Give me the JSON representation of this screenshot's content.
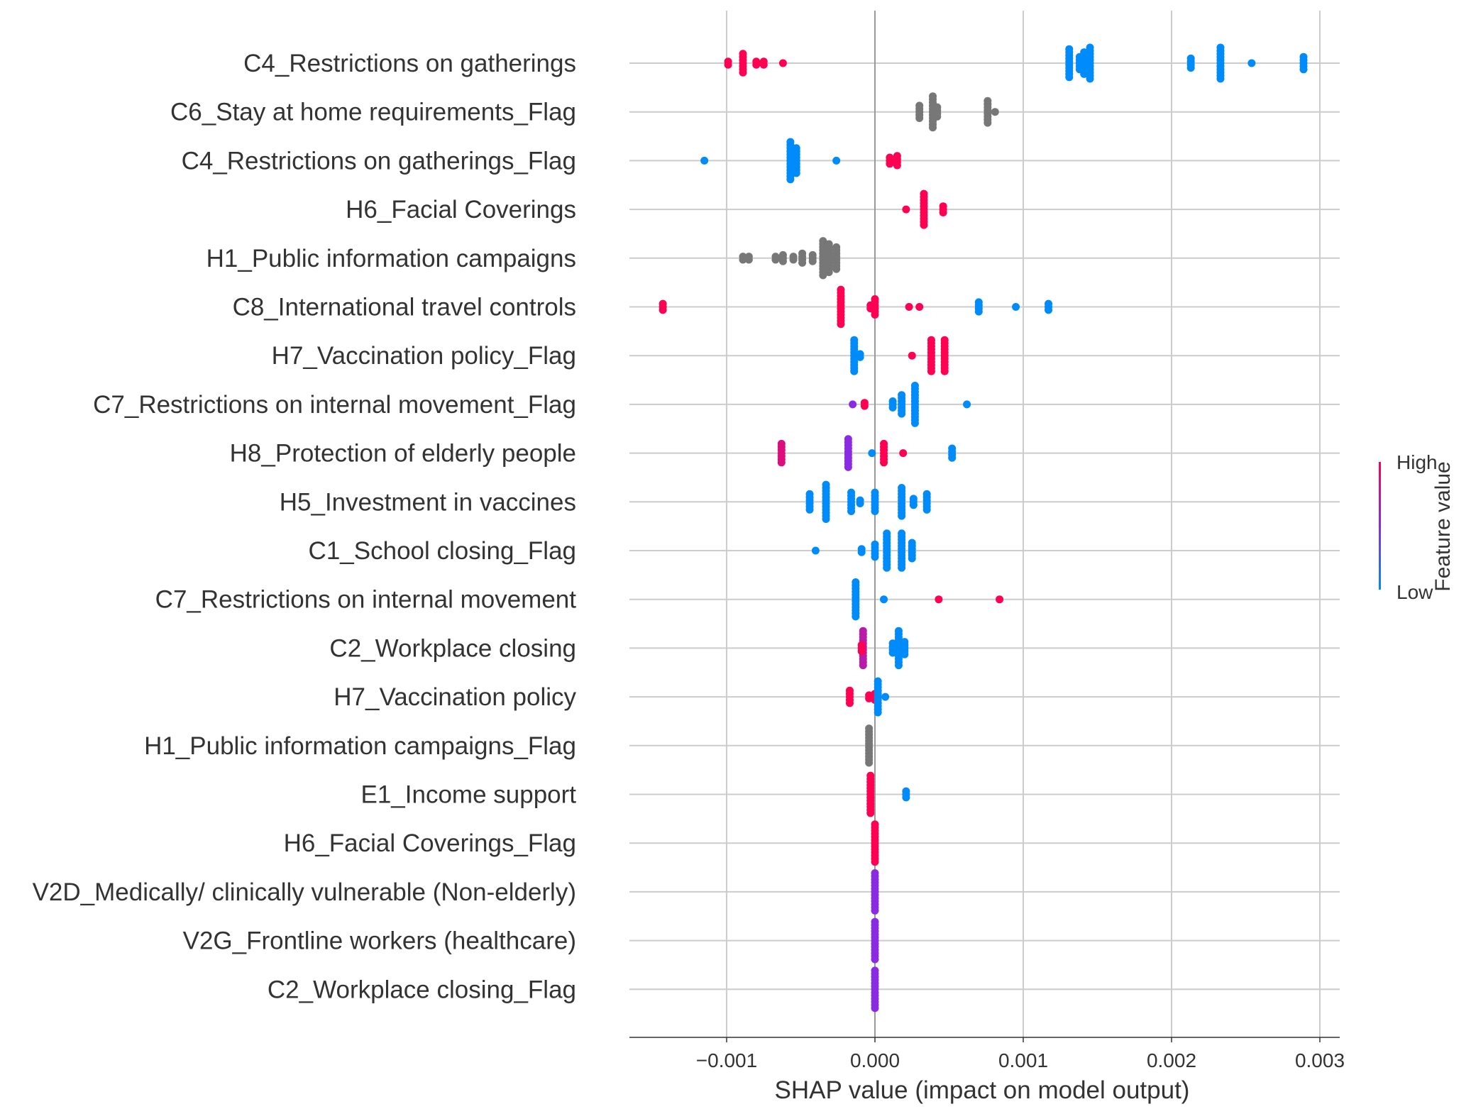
{
  "chart_data": {
    "type": "scatter",
    "subtype": "shap-beeswarm-summary",
    "xlabel": "SHAP value (impact on model output)",
    "x_ticks": [
      -0.001,
      0.0,
      0.001,
      0.002,
      0.003
    ],
    "x_tick_labels": [
      "−0.001",
      "0.000",
      "0.001",
      "0.002",
      "0.003"
    ],
    "xlim": [
      -0.00165,
      0.00312
    ],
    "grid": "vertical major gridlines and horizontal feature lines",
    "colorbar": {
      "title": "Feature value",
      "high_label": "High",
      "low_label": "Low",
      "high_color": "#ff0052",
      "low_color": "#008bfb",
      "missing_color": "#777777"
    },
    "features": [
      {
        "name": "C4_Restrictions on gatherings",
        "clusters": [
          {
            "x": -0.00099,
            "n": 2,
            "c": 1.0
          },
          {
            "x": -0.00089,
            "n": 7,
            "c": 1.0
          },
          {
            "x": -0.0008,
            "n": 2,
            "c": 1.0
          },
          {
            "x": -0.00075,
            "n": 2,
            "c": 1.0
          },
          {
            "x": -0.00062,
            "n": 1,
            "c": 1.0
          },
          {
            "x": 0.00131,
            "n": 10,
            "c": 0.0
          },
          {
            "x": 0.00138,
            "n": 5,
            "c": 0.0
          },
          {
            "x": 0.00141,
            "n": 8,
            "c": 0.0
          },
          {
            "x": 0.00145,
            "n": 11,
            "c": 0.0
          },
          {
            "x": 0.00213,
            "n": 4,
            "c": 0.0
          },
          {
            "x": 0.00233,
            "n": 11,
            "c": 0.0
          },
          {
            "x": 0.00254,
            "n": 1,
            "c": 0.0
          },
          {
            "x": 0.00289,
            "n": 5,
            "c": 0.0
          }
        ]
      },
      {
        "name": "C6_Stay at home requirements_Flag",
        "clusters": [
          {
            "x": 0.0003,
            "n": 5,
            "c": null
          },
          {
            "x": 0.00039,
            "n": 11,
            "c": null
          },
          {
            "x": 0.00042,
            "n": 4,
            "c": null
          },
          {
            "x": 0.00076,
            "n": 8,
            "c": null
          },
          {
            "x": 0.00081,
            "n": 1,
            "c": null
          }
        ]
      },
      {
        "name": "C4_Restrictions on gatherings_Flag",
        "clusters": [
          {
            "x": -0.00115,
            "n": 1,
            "c": 0.0
          },
          {
            "x": -0.00057,
            "n": 13,
            "c": 0.0
          },
          {
            "x": -0.00053,
            "n": 9,
            "c": 0.0
          },
          {
            "x": -0.00026,
            "n": 1,
            "c": 0.0
          },
          {
            "x": 0.0001,
            "n": 3,
            "c": 1.0
          },
          {
            "x": 0.00015,
            "n": 4,
            "c": 1.0
          }
        ]
      },
      {
        "name": "H6_Facial Coverings",
        "clusters": [
          {
            "x": 0.00021,
            "n": 1,
            "c": 1.0
          },
          {
            "x": 0.00033,
            "n": 11,
            "c": 1.0
          },
          {
            "x": 0.00046,
            "n": 3,
            "c": 1.0
          }
        ]
      },
      {
        "name": "H1_Public information campaigns",
        "clusters": [
          {
            "x": -0.00089,
            "n": 2,
            "c": null
          },
          {
            "x": -0.00085,
            "n": 2,
            "c": null
          },
          {
            "x": -0.00067,
            "n": 2,
            "c": null
          },
          {
            "x": -0.00062,
            "n": 3,
            "c": null
          },
          {
            "x": -0.00055,
            "n": 2,
            "c": null
          },
          {
            "x": -0.00049,
            "n": 4,
            "c": null
          },
          {
            "x": -0.00042,
            "n": 3,
            "c": null
          },
          {
            "x": -0.00035,
            "n": 12,
            "c": null
          },
          {
            "x": -0.00031,
            "n": 10,
            "c": null
          },
          {
            "x": -0.00026,
            "n": 8,
            "c": null
          }
        ]
      },
      {
        "name": "C8_International travel controls",
        "clusters": [
          {
            "x": -0.00143,
            "n": 3,
            "c": 1.0
          },
          {
            "x": -0.00023,
            "n": 12,
            "c": 1.0
          },
          {
            "x": -3e-05,
            "n": 2,
            "c": 1.0
          },
          {
            "x": 0.0,
            "n": 6,
            "c": 1.0
          },
          {
            "x": 0.00023,
            "n": 1,
            "c": 1.0
          },
          {
            "x": 0.0003,
            "n": 1,
            "c": 1.0
          },
          {
            "x": 0.0007,
            "n": 4,
            "c": 0.0
          },
          {
            "x": 0.00095,
            "n": 1,
            "c": 0.0
          },
          {
            "x": 0.00117,
            "n": 3,
            "c": 0.0
          }
        ]
      },
      {
        "name": "H7_Vaccination policy_Flag",
        "clusters": [
          {
            "x": -0.00014,
            "n": 11,
            "c": 0.0
          },
          {
            "x": -0.0001,
            "n": 2,
            "c": 0.0
          },
          {
            "x": 0.00025,
            "n": 1,
            "c": 1.0
          },
          {
            "x": 0.00038,
            "n": 11,
            "c": 1.0
          },
          {
            "x": 0.00047,
            "n": 11,
            "c": 1.0
          }
        ]
      },
      {
        "name": "C7_Restrictions on internal movement_Flag",
        "clusters": [
          {
            "x": -0.00015,
            "n": 1,
            "c": 0.5
          },
          {
            "x": -7e-05,
            "n": 2,
            "c": 1.0
          },
          {
            "x": 0.00012,
            "n": 3,
            "c": 0.0
          },
          {
            "x": 0.00018,
            "n": 7,
            "c": 0.0
          },
          {
            "x": 0.00027,
            "n": 13,
            "c": 0.0
          },
          {
            "x": 0.00062,
            "n": 1,
            "c": 0.0
          }
        ]
      },
      {
        "name": "H8_Protection of elderly people",
        "clusters": [
          {
            "x": -0.00063,
            "n": 7,
            "c": 0.85
          },
          {
            "x": -0.00018,
            "n": 10,
            "c": 0.5
          },
          {
            "x": -2e-05,
            "n": 1,
            "c": 0.0
          },
          {
            "x": 6e-05,
            "n": 7,
            "c": 1.0
          },
          {
            "x": 0.00019,
            "n": 1,
            "c": 1.0
          },
          {
            "x": 0.00052,
            "n": 4,
            "c": 0.0
          }
        ]
      },
      {
        "name": "H5_Investment in vaccines",
        "clusters": [
          {
            "x": -0.00044,
            "n": 6,
            "c": 0.0
          },
          {
            "x": -0.00033,
            "n": 12,
            "c": 0.0
          },
          {
            "x": -0.00016,
            "n": 7,
            "c": 0.0
          },
          {
            "x": -0.0001,
            "n": 2,
            "c": 0.0
          },
          {
            "x": 0.0,
            "n": 7,
            "c": 0.0
          },
          {
            "x": 0.00018,
            "n": 10,
            "c": 0.0
          },
          {
            "x": 0.00026,
            "n": 3,
            "c": 0.0
          },
          {
            "x": 0.00035,
            "n": 6,
            "c": 0.0
          }
        ]
      },
      {
        "name": "C1_School closing_Flag",
        "clusters": [
          {
            "x": -0.0004,
            "n": 1,
            "c": 0.0
          },
          {
            "x": -9e-05,
            "n": 2,
            "c": 0.0
          },
          {
            "x": 0.0,
            "n": 5,
            "c": 0.0
          },
          {
            "x": 8e-05,
            "n": 12,
            "c": 0.0
          },
          {
            "x": 0.00018,
            "n": 12,
            "c": 0.0
          },
          {
            "x": 0.00025,
            "n": 6,
            "c": 0.0
          }
        ]
      },
      {
        "name": "C7_Restrictions on internal movement",
        "clusters": [
          {
            "x": -0.00013,
            "n": 12,
            "c": 0.0
          },
          {
            "x": 6e-05,
            "n": 1,
            "c": 0.0
          },
          {
            "x": 0.00043,
            "n": 1,
            "c": 1.0
          },
          {
            "x": 0.00084,
            "n": 1,
            "c": 1.0
          }
        ]
      },
      {
        "name": "C2_Workplace closing",
        "clusters": [
          {
            "x": -8e-05,
            "n": 12,
            "c": 0.7
          },
          {
            "x": -9e-05,
            "n": 3,
            "c": 1.0
          },
          {
            "x": 0.00012,
            "n": 4,
            "c": 0.0
          },
          {
            "x": 0.00016,
            "n": 12,
            "c": 0.0
          },
          {
            "x": 0.0002,
            "n": 5,
            "c": 0.0
          }
        ]
      },
      {
        "name": "H7_Vaccination policy",
        "clusters": [
          {
            "x": -0.00017,
            "n": 5,
            "c": 1.0
          },
          {
            "x": -4e-05,
            "n": 2,
            "c": 1.0
          },
          {
            "x": 0.0,
            "n": 3,
            "c": 1.0
          },
          {
            "x": 2e-05,
            "n": 11,
            "c": 0.0
          },
          {
            "x": 7e-05,
            "n": 1,
            "c": 0.0
          }
        ]
      },
      {
        "name": "H1_Public information campaigns_Flag",
        "clusters": [
          {
            "x": -4e-05,
            "n": 12,
            "c": null
          }
        ]
      },
      {
        "name": "E1_Income support",
        "clusters": [
          {
            "x": -3e-05,
            "n": 13,
            "c": 1.0
          },
          {
            "x": 0.00021,
            "n": 3,
            "c": 0.0
          }
        ]
      },
      {
        "name": "H6_Facial Coverings_Flag",
        "clusters": [
          {
            "x": 0.0,
            "n": 13,
            "c": 1.0
          }
        ]
      },
      {
        "name": "V2D_Medically/ clinically vulnerable (Non-elderly)",
        "clusters": [
          {
            "x": 0.0,
            "n": 13,
            "c": 0.5
          }
        ]
      },
      {
        "name": "V2G_Frontline workers  (healthcare)",
        "clusters": [
          {
            "x": 0.0,
            "n": 13,
            "c": 0.5
          }
        ]
      },
      {
        "name": "C2_Workplace closing_Flag",
        "clusters": [
          {
            "x": 0.0,
            "n": 13,
            "c": 0.5
          }
        ]
      }
    ]
  }
}
